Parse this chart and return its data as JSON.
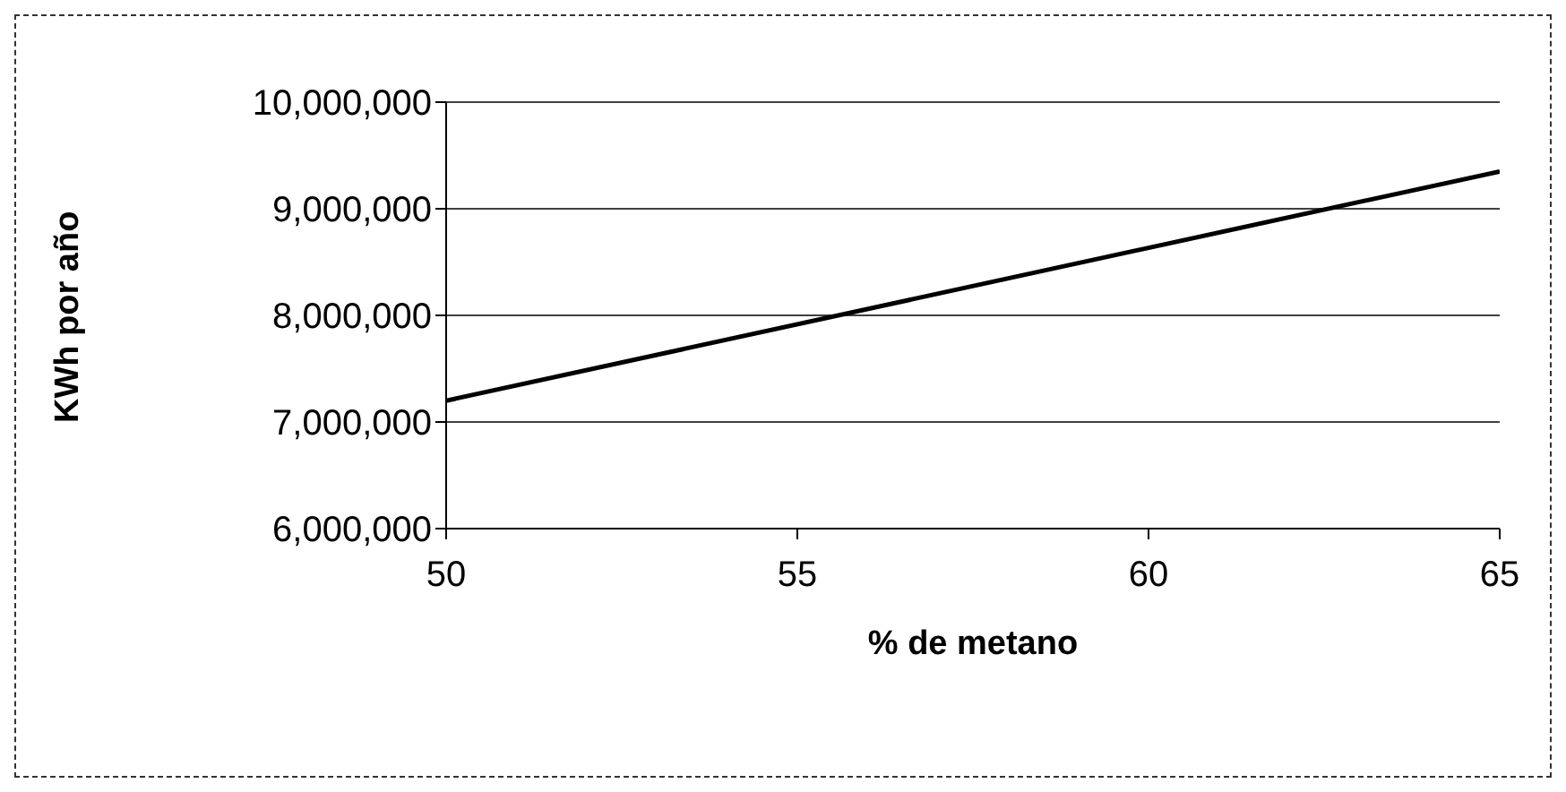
{
  "chart_data": {
    "type": "line",
    "xlabel": "% de metano",
    "ylabel": "KWh  por año",
    "x": [
      50,
      65
    ],
    "series": [
      {
        "color": "#000000",
        "values": [
          7200000,
          9350000
        ]
      }
    ],
    "xlim": [
      50,
      65
    ],
    "xticks": [
      50,
      55,
      60,
      65
    ],
    "ylim": [
      6000000,
      10000000
    ],
    "yticks": [
      {
        "value": 6000000,
        "label": "6,000,000"
      },
      {
        "value": 7000000,
        "label": "7,000,000"
      },
      {
        "value": 8000000,
        "label": "8,000,000"
      },
      {
        "value": 9000000,
        "label": "9,000,000"
      },
      {
        "value": 10000000,
        "label": "10,000,000"
      }
    ],
    "grid": "y",
    "legend": false,
    "marker": "none",
    "line_style": "solid"
  }
}
